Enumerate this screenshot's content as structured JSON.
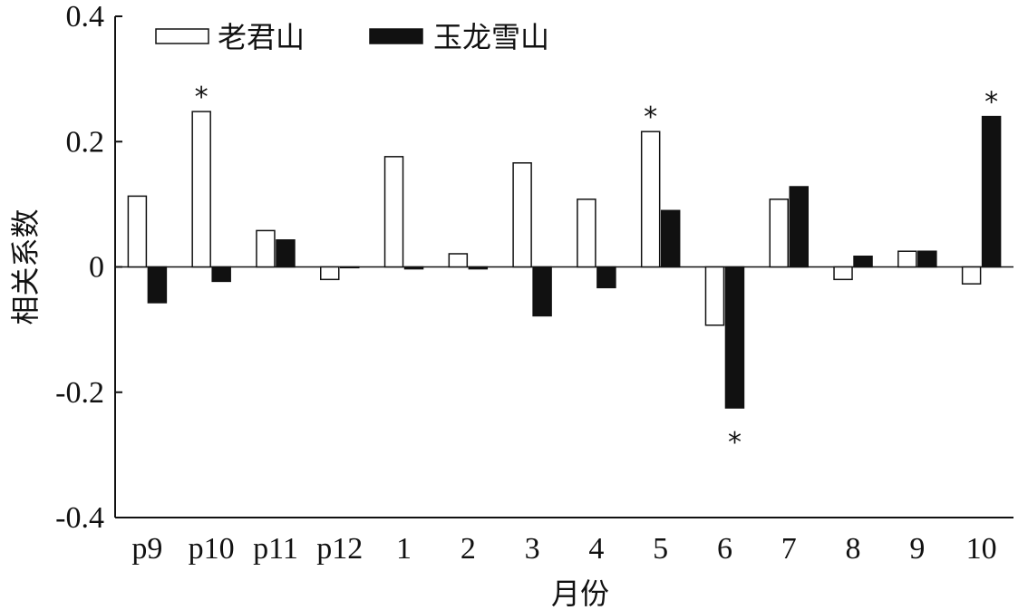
{
  "chart_data": {
    "type": "bar",
    "title": "",
    "xlabel": "月份",
    "ylabel": "相关系数",
    "ylim": [
      -0.4,
      0.4
    ],
    "yticks": [
      "0.4",
      "0.2",
      "0",
      "-0.2",
      "-0.4"
    ],
    "ytick_values": [
      0.4,
      0.2,
      0,
      -0.2,
      -0.4
    ],
    "categories": [
      "p9",
      "p10",
      "p11",
      "p12",
      "1",
      "2",
      "3",
      "4",
      "5",
      "6",
      "7",
      "8",
      "9",
      "10"
    ],
    "legend_position": "top-left",
    "grid": false,
    "series": [
      {
        "name": "老君山",
        "fill": "#ffffff",
        "stroke": "#111111",
        "values": [
          0.113,
          0.248,
          0.058,
          -0.02,
          0.176,
          0.021,
          0.166,
          0.108,
          0.216,
          -0.093,
          0.108,
          -0.02,
          0.025,
          -0.027
        ]
      },
      {
        "name": "玉龙雪山",
        "fill": "#111111",
        "stroke": "#111111",
        "values": [
          -0.057,
          -0.023,
          0.043,
          0.0,
          -0.003,
          -0.003,
          -0.078,
          -0.033,
          0.09,
          -0.225,
          0.128,
          0.017,
          0.025,
          0.24
        ]
      }
    ],
    "significance": [
      {
        "category": "p10",
        "series": 0,
        "label": "*"
      },
      {
        "category": "5",
        "series": 0,
        "label": "*"
      },
      {
        "category": "6",
        "series": 1,
        "label": "*"
      },
      {
        "category": "10",
        "series": 1,
        "label": "*"
      }
    ]
  }
}
